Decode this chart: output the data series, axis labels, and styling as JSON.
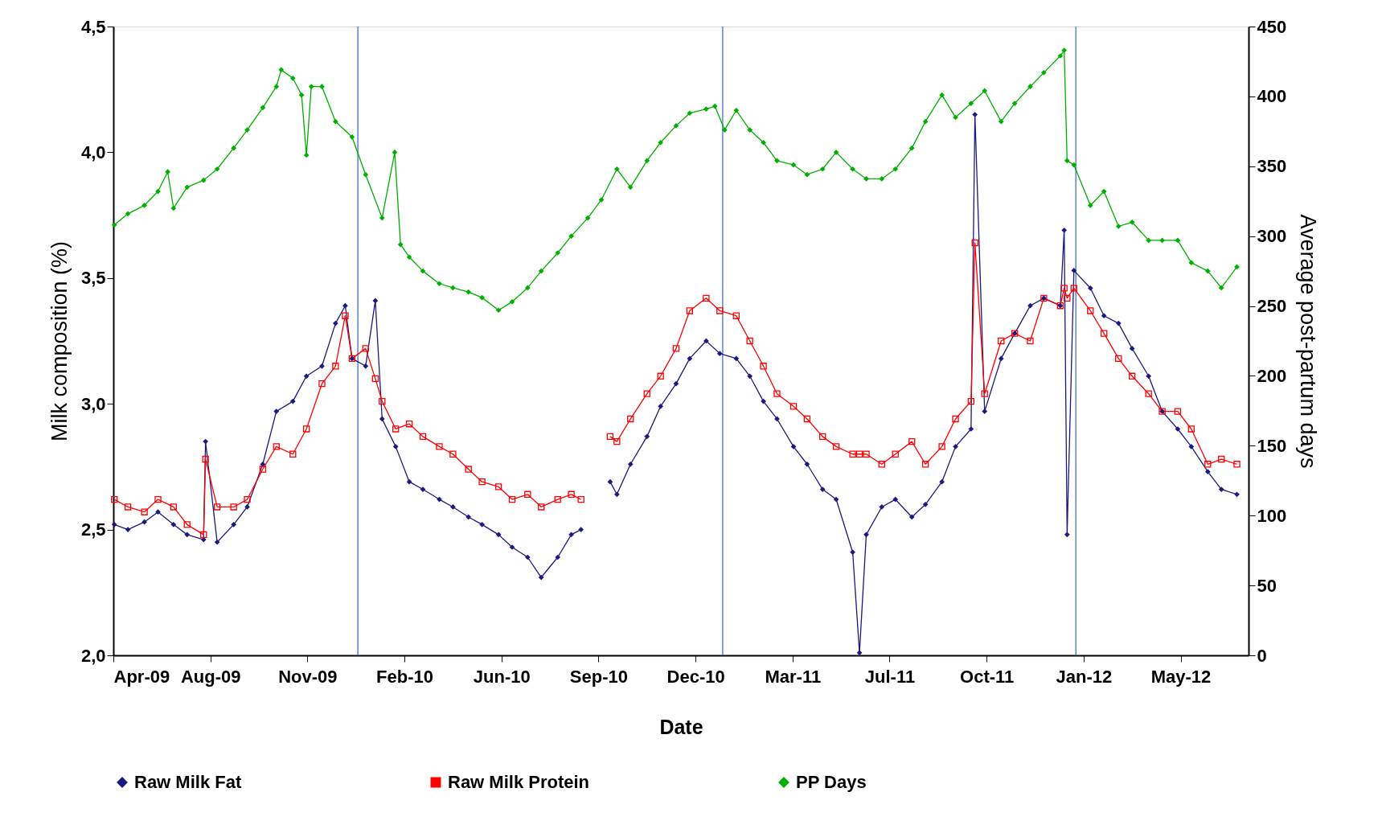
{
  "chart_data": {
    "type": "line",
    "xlabel": "Date",
    "ylabel": "Milk composition (%)",
    "y2label": "Average post-partum days",
    "xlim": [
      "2009-04-30",
      "2012-07-13"
    ],
    "xticks": [
      {
        "value": "2009-04-30",
        "label": "Apr-09"
      },
      {
        "value": "2009-08-08",
        "label": "Aug-09"
      },
      {
        "value": "2009-11-16",
        "label": "Nov-09"
      },
      {
        "value": "2010-02-24",
        "label": "Feb-10"
      },
      {
        "value": "2010-06-04",
        "label": "Jun-10"
      },
      {
        "value": "2010-09-12",
        "label": "Sep-10"
      },
      {
        "value": "2010-12-21",
        "label": "Dec-10"
      },
      {
        "value": "2011-03-31",
        "label": "Mar-11"
      },
      {
        "value": "2011-07-09",
        "label": "Jul-11"
      },
      {
        "value": "2011-10-17",
        "label": "Oct-11"
      },
      {
        "value": "2012-01-25",
        "label": "Jan-12"
      },
      {
        "value": "2012-05-04",
        "label": "May-12"
      }
    ],
    "ylim": [
      2,
      4.5
    ],
    "yticks": [
      {
        "value": 2,
        "label": "2,0"
      },
      {
        "value": 2.5,
        "label": "2,5"
      },
      {
        "value": 3,
        "label": "3,0"
      },
      {
        "value": 3.5,
        "label": "3,5"
      },
      {
        "value": 4,
        "label": "4,0"
      },
      {
        "value": 4.5,
        "label": "4,5"
      }
    ],
    "y2lim": [
      0,
      450
    ],
    "y2ticks": [
      0,
      50,
      100,
      150,
      200,
      250,
      300,
      350,
      400,
      450
    ],
    "grid": false,
    "legend": "bottom",
    "ref_lines": [
      {
        "axis": "x",
        "value": "2010-01-07",
        "color": "#4472c4"
      },
      {
        "axis": "x",
        "value": "2011-01-18",
        "color": "#4472c4"
      },
      {
        "axis": "x",
        "value": "2012-01-17",
        "color": "#4472c4"
      }
    ],
    "series": [
      {
        "name": "Raw Milk Fat",
        "color": "#1a1a80",
        "marker": "diamond",
        "x": [
          "2009-05-01",
          "2009-05-15",
          "2009-06-01",
          "2009-06-15",
          "2009-07-01",
          "2009-07-15",
          "2009-08-01",
          "2009-08-03",
          "2009-08-15",
          "2009-09-01",
          "2009-09-15",
          "2009-10-01",
          "2009-10-15",
          "2009-11-01",
          "2009-11-15",
          "2009-12-01",
          "2009-12-15",
          "2009-12-25",
          "2010-01-01",
          "2010-01-15",
          "2010-01-25",
          "2010-02-01",
          "2010-02-15",
          "2010-03-01",
          "2010-03-15",
          "2010-04-01",
          "2010-04-15",
          "2010-05-01",
          "2010-05-15",
          "2010-06-01",
          "2010-06-15",
          "2010-07-01",
          "2010-07-15",
          "2010-08-01",
          "2010-08-15",
          "2010-08-25",
          "2010-09-01",
          "2010-09-24",
          "2010-10-01",
          "2010-10-15",
          "2010-11-01",
          "2010-11-15",
          "2010-12-01",
          "2010-12-15",
          "2011-01-01",
          "2011-01-15",
          "2011-02-01",
          "2011-02-15",
          "2011-03-01",
          "2011-03-15",
          "2011-04-01",
          "2011-04-15",
          "2011-05-01",
          "2011-05-15",
          "2011-06-01",
          "2011-06-08",
          "2011-06-15",
          "2011-07-01",
          "2011-07-15",
          "2011-08-01",
          "2011-08-15",
          "2011-09-01",
          "2011-09-15",
          "2011-10-01",
          "2011-10-05",
          "2011-10-15",
          "2011-11-01",
          "2011-11-15",
          "2011-12-01",
          "2011-12-15",
          "2012-01-01",
          "2012-01-05",
          "2012-01-08",
          "2012-01-15",
          "2012-02-01",
          "2012-02-15",
          "2012-03-01",
          "2012-03-15",
          "2012-04-01",
          "2012-04-15",
          "2012-05-01",
          "2012-05-15",
          "2012-06-01",
          "2012-06-15",
          "2012-07-01"
        ],
        "values": [
          2.52,
          2.5,
          2.53,
          2.57,
          2.52,
          2.48,
          2.46,
          2.85,
          2.45,
          2.52,
          2.59,
          2.76,
          2.97,
          3.01,
          3.11,
          3.15,
          3.32,
          3.39,
          3.18,
          3.15,
          3.41,
          2.94,
          2.83,
          2.69,
          2.66,
          2.62,
          2.59,
          2.55,
          2.52,
          2.48,
          2.43,
          2.39,
          2.31,
          2.39,
          2.48,
          2.5,
          null,
          2.69,
          2.64,
          2.76,
          2.87,
          2.99,
          3.08,
          3.18,
          3.25,
          3.2,
          3.18,
          3.11,
          3.01,
          2.94,
          2.83,
          2.76,
          2.66,
          2.62,
          2.41,
          2.01,
          2.48,
          2.59,
          2.62,
          2.55,
          2.6,
          2.69,
          2.83,
          2.9,
          4.15,
          2.97,
          3.18,
          3.28,
          3.39,
          3.42,
          3.39,
          3.69,
          2.48,
          3.53,
          3.46,
          3.35,
          3.32,
          3.22,
          3.11,
          2.97,
          2.9,
          2.83,
          2.73,
          2.66,
          2.64
        ]
      },
      {
        "name": "Raw Milk Protein",
        "color": "#ff0000",
        "marker": "square",
        "x": [
          "2009-05-01",
          "2009-05-15",
          "2009-06-01",
          "2009-06-15",
          "2009-07-01",
          "2009-07-15",
          "2009-08-01",
          "2009-08-03",
          "2009-08-15",
          "2009-09-01",
          "2009-09-15",
          "2009-10-01",
          "2009-10-15",
          "2009-11-01",
          "2009-11-15",
          "2009-12-01",
          "2009-12-15",
          "2009-12-25",
          "2010-01-01",
          "2010-01-15",
          "2010-01-25",
          "2010-02-01",
          "2010-02-15",
          "2010-03-01",
          "2010-03-15",
          "2010-04-01",
          "2010-04-15",
          "2010-05-01",
          "2010-05-15",
          "2010-06-01",
          "2010-06-15",
          "2010-07-01",
          "2010-07-15",
          "2010-08-01",
          "2010-08-15",
          "2010-08-25",
          "2010-09-01",
          "2010-09-24",
          "2010-10-01",
          "2010-10-15",
          "2010-11-01",
          "2010-11-15",
          "2010-12-01",
          "2010-12-15",
          "2011-01-01",
          "2011-01-15",
          "2011-02-01",
          "2011-02-15",
          "2011-03-01",
          "2011-03-15",
          "2011-04-01",
          "2011-04-15",
          "2011-05-01",
          "2011-05-15",
          "2011-06-01",
          "2011-06-08",
          "2011-06-15",
          "2011-07-01",
          "2011-07-15",
          "2011-08-01",
          "2011-08-15",
          "2011-09-01",
          "2011-09-15",
          "2011-10-01",
          "2011-10-05",
          "2011-10-15",
          "2011-11-01",
          "2011-11-15",
          "2011-12-01",
          "2011-12-15",
          "2012-01-01",
          "2012-01-05",
          "2012-01-08",
          "2012-01-15",
          "2012-02-01",
          "2012-02-15",
          "2012-03-01",
          "2012-03-15",
          "2012-04-01",
          "2012-04-15",
          "2012-05-01",
          "2012-05-15",
          "2012-06-01",
          "2012-06-15",
          "2012-07-01"
        ],
        "values": [
          2.62,
          2.59,
          2.57,
          2.62,
          2.59,
          2.52,
          2.48,
          2.78,
          2.59,
          2.59,
          2.62,
          2.74,
          2.83,
          2.8,
          2.9,
          3.08,
          3.15,
          3.35,
          3.18,
          3.22,
          3.1,
          3.01,
          2.9,
          2.92,
          2.87,
          2.83,
          2.8,
          2.74,
          2.69,
          2.67,
          2.62,
          2.64,
          2.59,
          2.62,
          2.64,
          2.62,
          null,
          2.87,
          2.85,
          2.94,
          3.04,
          3.11,
          3.22,
          3.37,
          3.42,
          3.37,
          3.35,
          3.25,
          3.15,
          3.04,
          2.99,
          2.94,
          2.87,
          2.83,
          2.8,
          2.8,
          2.8,
          2.76,
          2.8,
          2.85,
          2.76,
          2.83,
          2.94,
          3.01,
          3.64,
          3.04,
          3.25,
          3.28,
          3.25,
          3.42,
          3.39,
          3.46,
          3.42,
          3.46,
          3.37,
          3.28,
          3.18,
          3.11,
          3.04,
          2.97,
          2.97,
          2.9,
          2.76,
          2.78,
          2.76
        ]
      },
      {
        "name": "PP Days",
        "color": "#00b000",
        "marker": "diamond",
        "axis": "y2",
        "x": [
          "2009-05-01",
          "2009-05-15",
          "2009-06-01",
          "2009-06-15",
          "2009-06-25",
          "2009-07-01",
          "2009-07-15",
          "2009-08-01",
          "2009-08-15",
          "2009-09-01",
          "2009-09-15",
          "2009-10-01",
          "2009-10-15",
          "2009-10-20",
          "2009-11-01",
          "2009-11-10",
          "2009-11-15",
          "2009-11-20",
          "2009-12-01",
          "2009-12-15",
          "2010-01-01",
          "2010-01-15",
          "2010-02-01",
          "2010-02-14",
          "2010-02-20",
          "2010-03-01",
          "2010-03-15",
          "2010-04-01",
          "2010-04-15",
          "2010-05-01",
          "2010-05-15",
          "2010-06-01",
          "2010-06-15",
          "2010-07-01",
          "2010-07-15",
          "2010-08-01",
          "2010-08-15",
          "2010-09-01",
          "2010-09-15",
          "2010-10-01",
          "2010-10-15",
          "2010-11-01",
          "2010-11-15",
          "2010-12-01",
          "2010-12-15",
          "2011-01-01",
          "2011-01-10",
          "2011-01-20",
          "2011-02-01",
          "2011-02-15",
          "2011-03-01",
          "2011-03-15",
          "2011-04-01",
          "2011-04-15",
          "2011-05-01",
          "2011-05-15",
          "2011-06-01",
          "2011-06-15",
          "2011-07-01",
          "2011-07-15",
          "2011-08-01",
          "2011-08-15",
          "2011-09-01",
          "2011-09-15",
          "2011-10-01",
          "2011-10-15",
          "2011-11-01",
          "2011-11-15",
          "2011-12-01",
          "2011-12-15",
          "2012-01-01",
          "2012-01-05",
          "2012-01-08",
          "2012-01-15",
          "2012-02-01",
          "2012-02-15",
          "2012-03-01",
          "2012-03-15",
          "2012-04-01",
          "2012-04-15",
          "2012-05-01",
          "2012-05-15",
          "2012-06-01",
          "2012-06-15",
          "2012-07-01"
        ],
        "values": [
          308,
          316,
          322,
          332,
          346,
          320,
          335,
          340,
          348,
          363,
          376,
          392,
          407,
          419,
          413,
          401,
          358,
          407,
          407,
          382,
          371,
          344,
          313,
          360,
          294,
          285,
          275,
          266,
          263,
          260,
          256,
          247,
          253,
          263,
          275,
          288,
          300,
          313,
          326,
          348,
          335,
          354,
          367,
          379,
          388,
          391,
          393,
          376,
          390,
          376,
          367,
          354,
          351,
          344,
          348,
          360,
          348,
          341,
          341,
          348,
          363,
          382,
          401,
          385,
          395,
          404,
          382,
          395,
          407,
          417,
          429,
          433,
          354,
          351,
          322,
          332,
          307,
          310,
          297,
          297,
          297,
          281,
          275,
          263,
          278
        ]
      }
    ]
  }
}
